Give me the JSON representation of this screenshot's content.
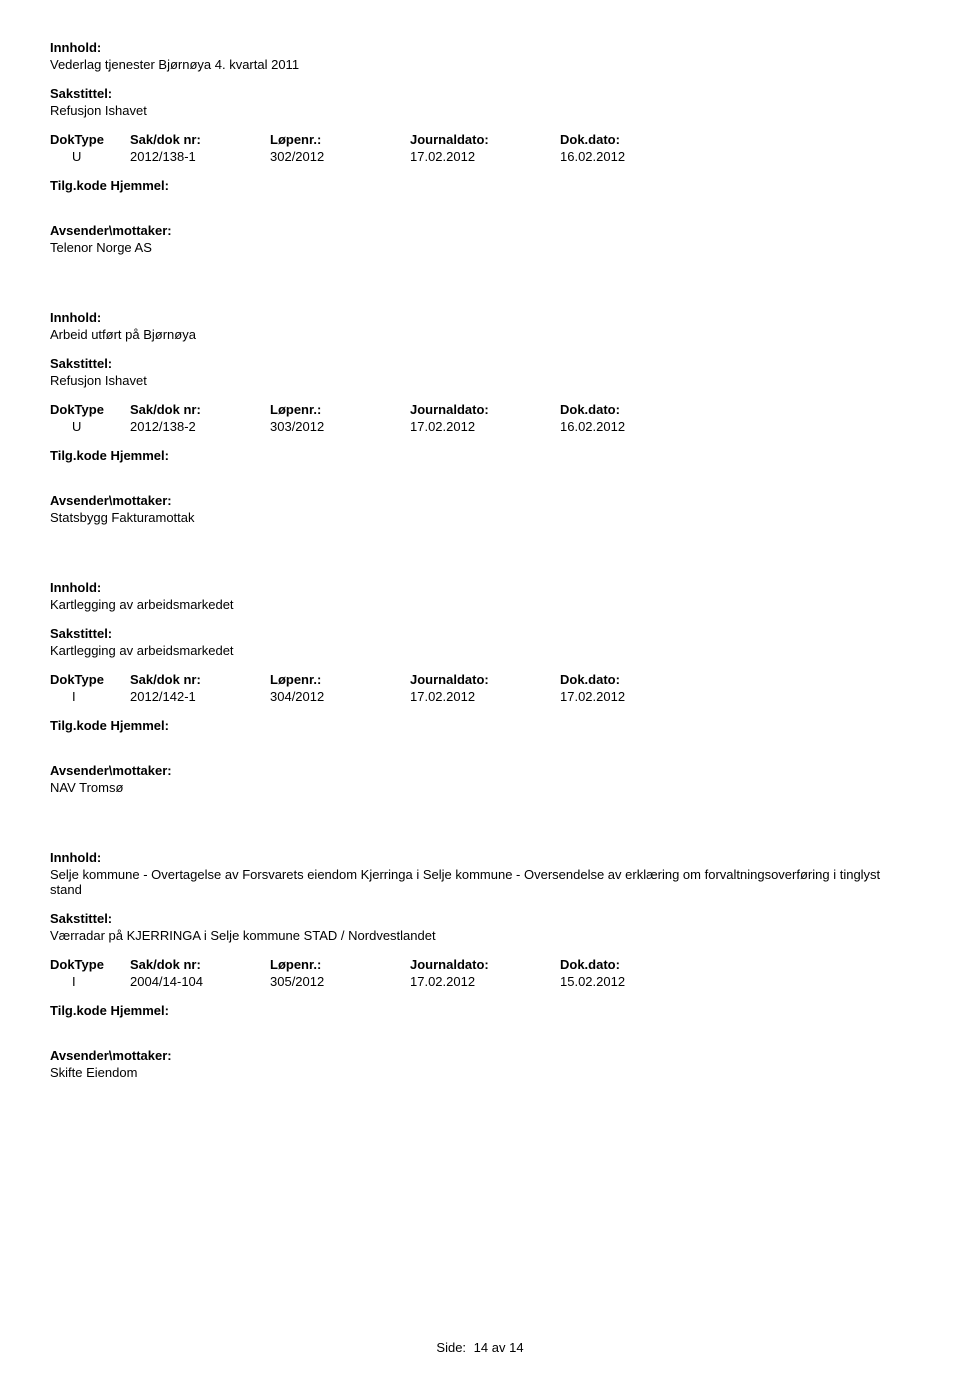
{
  "labels": {
    "innhold": "Innhold:",
    "sakstittel": "Sakstittel:",
    "doktype": "DokType",
    "sakdoknr": "Sak/dok nr:",
    "lopenr": "Løpenr.:",
    "journaldato": "Journaldato:",
    "dokdato": "Dok.dato:",
    "tilgkode": "Tilg.kode",
    "hjemmel": "Hjemmel:",
    "avsender": "Avsender\\mottaker:"
  },
  "entries": [
    {
      "innhold": "Vederlag tjenester Bjørnøya 4. kvartal 2011",
      "sakstittel": "Refusjon Ishavet",
      "doktype": "U",
      "sakdoknr": "2012/138-1",
      "lopenr": "302/2012",
      "journaldato": "17.02.2012",
      "dokdato": "16.02.2012",
      "avsender": "Telenor Norge AS"
    },
    {
      "innhold": "Arbeid utført på Bjørnøya",
      "sakstittel": "Refusjon Ishavet",
      "doktype": "U",
      "sakdoknr": "2012/138-2",
      "lopenr": "303/2012",
      "journaldato": "17.02.2012",
      "dokdato": "16.02.2012",
      "avsender": "Statsbygg Fakturamottak"
    },
    {
      "innhold": "Kartlegging av arbeidsmarkedet",
      "sakstittel": "Kartlegging av arbeidsmarkedet",
      "doktype": "I",
      "sakdoknr": "2012/142-1",
      "lopenr": "304/2012",
      "journaldato": "17.02.2012",
      "dokdato": "17.02.2012",
      "avsender": "NAV Tromsø"
    },
    {
      "innhold": "Selje kommune - Overtagelse av Forsvarets eiendom Kjerringa i Selje kommune - Oversendelse av erklæring om forvaltningsoverføring i tinglyst stand",
      "sakstittel": "Værradar på KJERRINGA i Selje kommune STAD / Nordvestlandet",
      "doktype": "I",
      "sakdoknr": "2004/14-104",
      "lopenr": "305/2012",
      "journaldato": "17.02.2012",
      "dokdato": "15.02.2012",
      "avsender": "Skifte Eiendom"
    }
  ],
  "footer": {
    "side_label": "Side:",
    "page": "14",
    "sep": "av",
    "total": "14"
  }
}
